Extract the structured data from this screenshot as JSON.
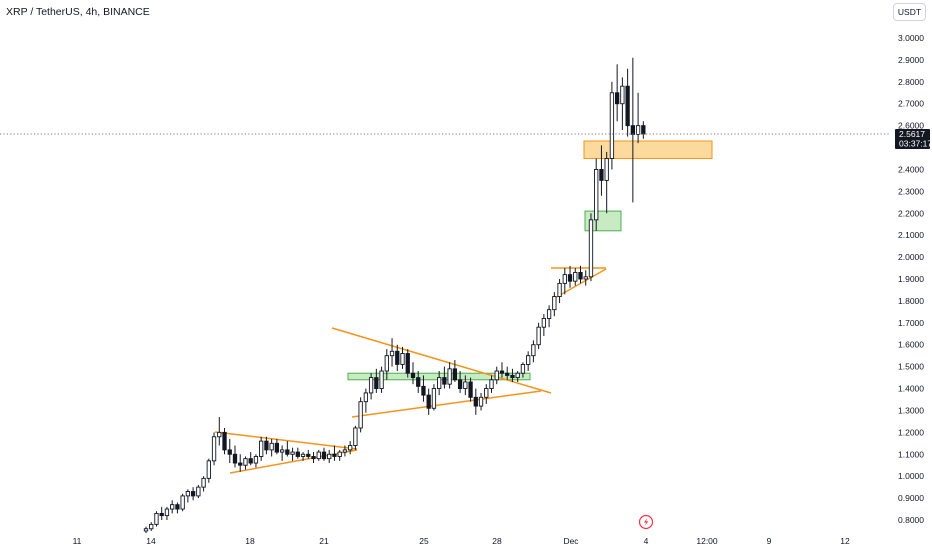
{
  "header": {
    "title": "XRP / TetherUS, 4h, BINANCE",
    "currency_button": "USDT"
  },
  "price_axis": {
    "ticks": [
      "3.0000",
      "2.9000",
      "2.8000",
      "2.7000",
      "2.6000",
      "2.4000",
      "2.3000",
      "2.2000",
      "2.1000",
      "2.0000",
      "1.9000",
      "1.8000",
      "1.7000",
      "1.6000",
      "1.5000",
      "1.4000",
      "1.3000",
      "1.2000",
      "1.1000",
      "1.0000",
      "0.9000",
      "0.8000"
    ],
    "current_price": "2.5617",
    "countdown": "03:37:17"
  },
  "time_axis": {
    "ticks": [
      "11",
      "14",
      "18",
      "21",
      "25",
      "28",
      "Dec",
      "4",
      "12:00",
      "9",
      "12"
    ]
  },
  "colors": {
    "candle_up": "#131722",
    "candle_down": "#131722",
    "triangle_line": "#f7931a",
    "orange_zone_fill": "#fbd38d",
    "orange_zone_border": "#f7931a",
    "green_zone_fill": "#b7e4b0",
    "green_zone_border": "#4caf50",
    "price_label_bg": "#131722",
    "dotted_line": "#787b86",
    "icon_red": "#f23645"
  },
  "chart_data": {
    "type": "candlestick",
    "symbol": "XRP / TetherUS",
    "interval": "4h",
    "exchange": "BINANCE",
    "ylim": [
      0.78,
      3.05
    ],
    "candles": [
      [
        0.75,
        0.77,
        0.74,
        0.76
      ],
      [
        0.76,
        0.79,
        0.75,
        0.78
      ],
      [
        0.78,
        0.84,
        0.77,
        0.83
      ],
      [
        0.83,
        0.86,
        0.8,
        0.82
      ],
      [
        0.82,
        0.86,
        0.8,
        0.85
      ],
      [
        0.85,
        0.89,
        0.83,
        0.87
      ],
      [
        0.87,
        0.88,
        0.83,
        0.85
      ],
      [
        0.85,
        0.92,
        0.84,
        0.91
      ],
      [
        0.91,
        0.94,
        0.88,
        0.93
      ],
      [
        0.93,
        0.95,
        0.89,
        0.91
      ],
      [
        0.91,
        0.96,
        0.9,
        0.95
      ],
      [
        0.95,
        1.0,
        0.93,
        0.99
      ],
      [
        0.99,
        1.08,
        0.97,
        1.07
      ],
      [
        1.07,
        1.2,
        1.05,
        1.18
      ],
      [
        1.18,
        1.27,
        1.14,
        1.2
      ],
      [
        1.2,
        1.22,
        1.1,
        1.12
      ],
      [
        1.12,
        1.17,
        1.06,
        1.1
      ],
      [
        1.1,
        1.14,
        1.04,
        1.06
      ],
      [
        1.06,
        1.1,
        1.02,
        1.05
      ],
      [
        1.05,
        1.09,
        1.03,
        1.08
      ],
      [
        1.08,
        1.11,
        1.05,
        1.06
      ],
      [
        1.06,
        1.1,
        1.04,
        1.09
      ],
      [
        1.09,
        1.18,
        1.07,
        1.16
      ],
      [
        1.16,
        1.18,
        1.1,
        1.12
      ],
      [
        1.12,
        1.17,
        1.09,
        1.15
      ],
      [
        1.15,
        1.17,
        1.1,
        1.11
      ],
      [
        1.11,
        1.14,
        1.07,
        1.12
      ],
      [
        1.12,
        1.16,
        1.09,
        1.1
      ],
      [
        1.1,
        1.13,
        1.07,
        1.11
      ],
      [
        1.11,
        1.13,
        1.08,
        1.09
      ],
      [
        1.09,
        1.11,
        1.07,
        1.1
      ],
      [
        1.1,
        1.12,
        1.08,
        1.09
      ],
      [
        1.09,
        1.11,
        1.06,
        1.08
      ],
      [
        1.08,
        1.12,
        1.07,
        1.11
      ],
      [
        1.11,
        1.13,
        1.07,
        1.08
      ],
      [
        1.08,
        1.12,
        1.06,
        1.1
      ],
      [
        1.1,
        1.14,
        1.07,
        1.09
      ],
      [
        1.09,
        1.12,
        1.07,
        1.11
      ],
      [
        1.11,
        1.14,
        1.09,
        1.12
      ],
      [
        1.12,
        1.16,
        1.1,
        1.14
      ],
      [
        1.14,
        1.23,
        1.12,
        1.22
      ],
      [
        1.22,
        1.36,
        1.2,
        1.34
      ],
      [
        1.34,
        1.4,
        1.29,
        1.38
      ],
      [
        1.38,
        1.47,
        1.35,
        1.45
      ],
      [
        1.45,
        1.49,
        1.38,
        1.4
      ],
      [
        1.4,
        1.5,
        1.38,
        1.48
      ],
      [
        1.48,
        1.58,
        1.44,
        1.55
      ],
      [
        1.55,
        1.63,
        1.5,
        1.57
      ],
      [
        1.57,
        1.6,
        1.48,
        1.51
      ],
      [
        1.51,
        1.59,
        1.49,
        1.56
      ],
      [
        1.56,
        1.58,
        1.45,
        1.47
      ],
      [
        1.47,
        1.52,
        1.42,
        1.45
      ],
      [
        1.45,
        1.48,
        1.38,
        1.41
      ],
      [
        1.41,
        1.46,
        1.34,
        1.37
      ],
      [
        1.37,
        1.4,
        1.28,
        1.31
      ],
      [
        1.31,
        1.42,
        1.3,
        1.4
      ],
      [
        1.4,
        1.48,
        1.37,
        1.45
      ],
      [
        1.45,
        1.5,
        1.4,
        1.42
      ],
      [
        1.42,
        1.52,
        1.4,
        1.49
      ],
      [
        1.49,
        1.53,
        1.43,
        1.44
      ],
      [
        1.44,
        1.48,
        1.38,
        1.4
      ],
      [
        1.4,
        1.46,
        1.37,
        1.43
      ],
      [
        1.43,
        1.45,
        1.34,
        1.36
      ],
      [
        1.36,
        1.4,
        1.28,
        1.32
      ],
      [
        1.32,
        1.38,
        1.3,
        1.36
      ],
      [
        1.36,
        1.42,
        1.33,
        1.4
      ],
      [
        1.4,
        1.46,
        1.38,
        1.44
      ],
      [
        1.44,
        1.5,
        1.42,
        1.48
      ],
      [
        1.48,
        1.52,
        1.45,
        1.47
      ],
      [
        1.47,
        1.5,
        1.44,
        1.46
      ],
      [
        1.46,
        1.49,
        1.43,
        1.45
      ],
      [
        1.45,
        1.48,
        1.43,
        1.47
      ],
      [
        1.47,
        1.52,
        1.45,
        1.51
      ],
      [
        1.51,
        1.57,
        1.48,
        1.55
      ],
      [
        1.55,
        1.62,
        1.52,
        1.6
      ],
      [
        1.6,
        1.7,
        1.58,
        1.68
      ],
      [
        1.68,
        1.74,
        1.64,
        1.72
      ],
      [
        1.72,
        1.78,
        1.68,
        1.76
      ],
      [
        1.76,
        1.84,
        1.73,
        1.82
      ],
      [
        1.82,
        1.9,
        1.79,
        1.88
      ],
      [
        1.88,
        1.95,
        1.83,
        1.92
      ],
      [
        1.92,
        1.96,
        1.86,
        1.89
      ],
      [
        1.89,
        1.95,
        1.87,
        1.93
      ],
      [
        1.93,
        1.96,
        1.88,
        1.9
      ],
      [
        1.9,
        1.94,
        1.87,
        1.91
      ],
      [
        1.91,
        2.2,
        1.89,
        2.17
      ],
      [
        2.17,
        2.45,
        2.12,
        2.4
      ],
      [
        2.4,
        2.51,
        2.28,
        2.35
      ],
      [
        2.35,
        2.48,
        2.2,
        2.45
      ],
      [
        2.45,
        2.8,
        2.4,
        2.75
      ],
      [
        2.75,
        2.88,
        2.62,
        2.7
      ],
      [
        2.7,
        2.82,
        2.58,
        2.78
      ],
      [
        2.78,
        2.86,
        2.55,
        2.6
      ],
      [
        2.6,
        2.91,
        2.25,
        2.56
      ],
      [
        2.56,
        2.75,
        2.52,
        2.6
      ],
      [
        2.6,
        2.62,
        2.54,
        2.5617
      ]
    ],
    "zones": [
      {
        "kind": "resistance-orange",
        "low": 2.45,
        "high": 2.53
      },
      {
        "kind": "support-green",
        "low": 2.12,
        "high": 2.21
      },
      {
        "kind": "support-green",
        "low": 1.44,
        "high": 1.47
      }
    ],
    "triangles": [
      {
        "upper": [
          [
            0,
            1.24
          ],
          [
            44,
            1.12
          ]
        ],
        "lower": [
          [
            0,
            1.01
          ],
          [
            44,
            1.12
          ]
        ]
      },
      {
        "upper": [
          [
            42,
            1.71
          ],
          [
            98,
            1.38
          ]
        ],
        "lower": [
          [
            42,
            1.32
          ],
          [
            98,
            1.39
          ]
        ]
      },
      {
        "upper": [
          [
            91,
            1.96
          ],
          [
            108,
            1.96
          ]
        ],
        "lower": [
          [
            91,
            1.84
          ],
          [
            108,
            1.95
          ]
        ]
      }
    ],
    "current_price": 2.5617,
    "grid": false,
    "legend": "none"
  }
}
